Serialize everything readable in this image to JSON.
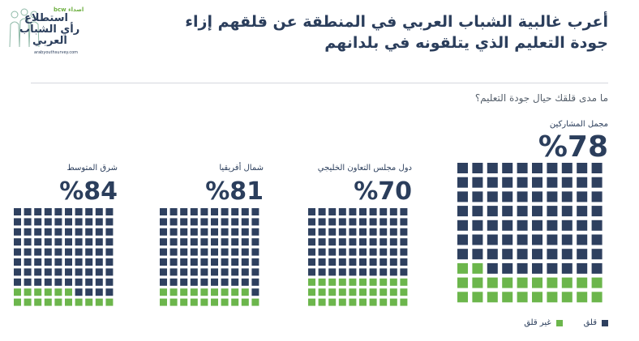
{
  "logo": {
    "brand": "bcw اصداء",
    "line1": "استطلاع",
    "line2": "رأي الشباب",
    "line3": "العربي",
    "url": "arabyouthsurvey.com"
  },
  "title": "أعرب غالبية الشباب العربي في المنطقة عن قلقهم إزاء جودة التعليم الذي يتلقونه في بلدانهم",
  "question": "ما مدى قلقك حيال جودة التعليم؟",
  "colors": {
    "concerned": "#2e405f",
    "not_concerned": "#6cb64c"
  },
  "legend": {
    "concerned": "قلق",
    "not_concerned": "غير قلق"
  },
  "chart_data": {
    "type": "waffle",
    "grid": "10x10",
    "unit": "%",
    "series": [
      "قلق",
      "غير قلق"
    ],
    "panels": [
      {
        "label": "مجمل المشاركين",
        "pct_text": "%78",
        "concerned": 78,
        "not_concerned": 22
      },
      {
        "label": "دول مجلس التعاون الخليجي",
        "pct_text": "%70",
        "concerned": 70,
        "not_concerned": 30
      },
      {
        "label": "شمال أفريقيا",
        "pct_text": "%81",
        "concerned": 81,
        "not_concerned": 19
      },
      {
        "label": "شرق المتوسط",
        "pct_text": "%84",
        "concerned": 84,
        "not_concerned": 16
      }
    ]
  }
}
